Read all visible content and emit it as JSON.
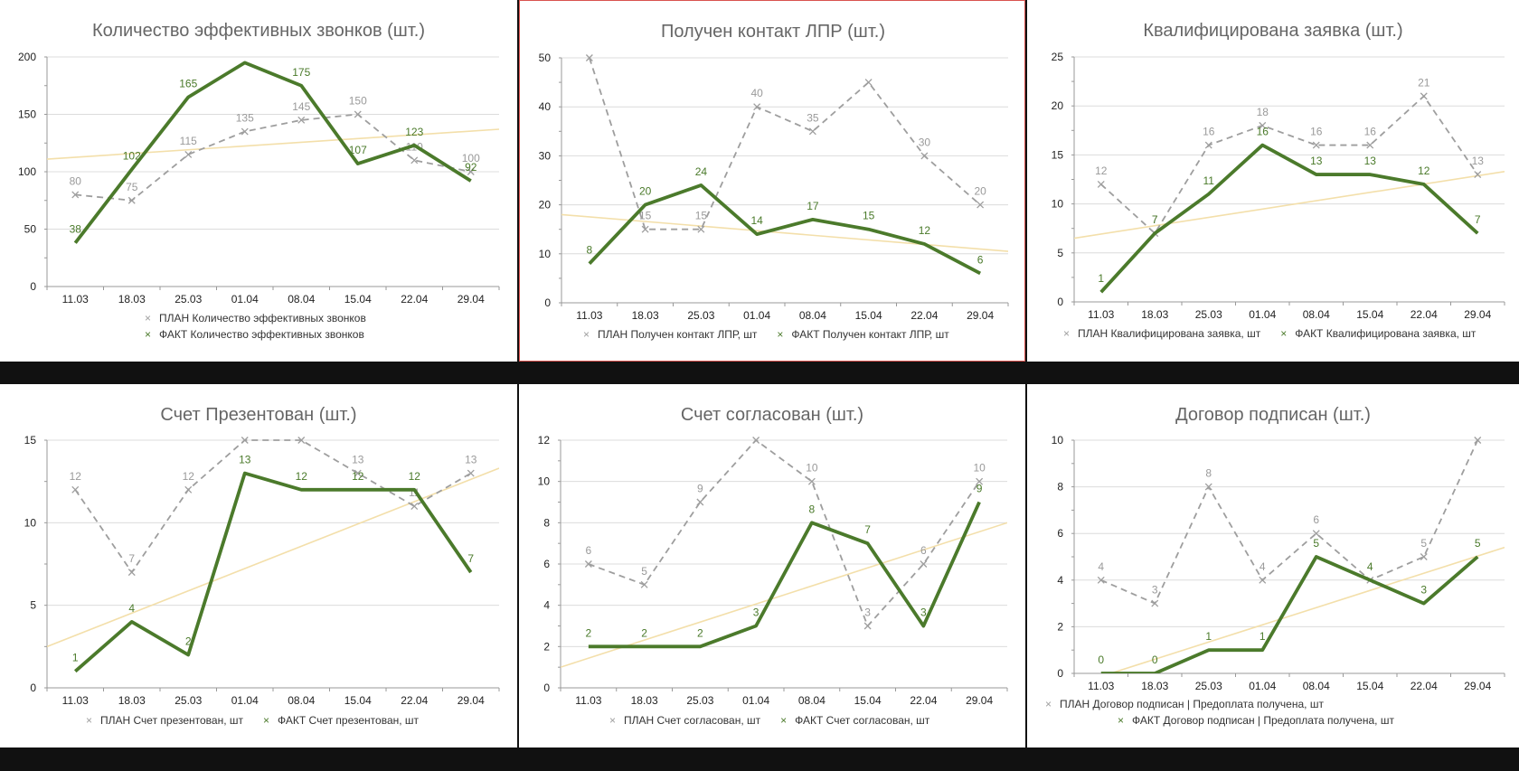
{
  "colors": {
    "plan": "#9e9e9e",
    "fact": "#4b7a2b",
    "trend": "#f3dfaa",
    "grid": "#dcdcdc",
    "axis": "#999999",
    "label_plan": "#9a9a9a",
    "label_fact": "#4a7a2a",
    "selected_border": "#d9534f"
  },
  "legend_marker": "×",
  "chart_data": [
    {
      "type": "line",
      "title": "Количество эффективных звонков (шт.)",
      "categories": [
        "11.03",
        "18.03",
        "25.03",
        "01.04",
        "08.04",
        "15.04",
        "22.04",
        "29.04"
      ],
      "ylim": [
        0,
        200
      ],
      "yticks": [
        0,
        50,
        100,
        150,
        200
      ],
      "minor_step": 25,
      "grid": true,
      "legend_placement": "bottom",
      "legend_layout": "stacked",
      "selected": false,
      "series": [
        {
          "name": "ПЛАН Количество эффективных звонков",
          "role": "plan",
          "values": [
            80,
            75,
            115,
            135,
            145,
            150,
            110,
            100
          ]
        },
        {
          "name": "ФАКТ Количество эффективных звонков",
          "role": "fact",
          "values": [
            38,
            102,
            165,
            195,
            175,
            107,
            123,
            92
          ],
          "labels": [
            "38",
            "102",
            "165",
            "",
            "175",
            "107",
            "123",
            "92"
          ]
        }
      ],
      "trendline": [
        111,
        137
      ]
    },
    {
      "type": "line",
      "title": "Получен контакт ЛПР (шт.)",
      "categories": [
        "11.03",
        "18.03",
        "25.03",
        "01.04",
        "08.04",
        "15.04",
        "22.04",
        "29.04"
      ],
      "ylim": [
        0,
        50
      ],
      "yticks": [
        0,
        10,
        20,
        30,
        40,
        50
      ],
      "minor_step": 5,
      "grid": true,
      "legend_placement": "bottom",
      "legend_layout": "inline",
      "selected": true,
      "series": [
        {
          "name": "ПЛАН Получен контакт ЛПР, шт",
          "role": "plan",
          "values": [
            50,
            15,
            15,
            40,
            35,
            45,
            30,
            20
          ],
          "labels": [
            "",
            "15",
            "15",
            "40",
            "35",
            "",
            "30",
            "20"
          ]
        },
        {
          "name": "ФАКТ Получен контакт ЛПР, шт",
          "role": "fact",
          "values": [
            8,
            20,
            24,
            14,
            17,
            15,
            12,
            6
          ]
        }
      ],
      "trendline": [
        18,
        10.5
      ]
    },
    {
      "type": "line",
      "title": "Квалифицирована заявка (шт.)",
      "categories": [
        "11.03",
        "18.03",
        "25.03",
        "01.04",
        "08.04",
        "15.04",
        "22.04",
        "29.04"
      ],
      "ylim": [
        0,
        25
      ],
      "yticks": [
        0,
        5,
        10,
        15,
        20,
        25
      ],
      "minor_step": 2.5,
      "grid": true,
      "legend_placement": "bottom",
      "legend_layout": "inline",
      "selected": false,
      "series": [
        {
          "name": "ПЛАН Квалифицирована заявка, шт",
          "role": "plan",
          "values": [
            12,
            7,
            16,
            18,
            16,
            16,
            21,
            13
          ]
        },
        {
          "name": "ФАКТ Квалифицирована заявка, шт",
          "role": "fact",
          "values": [
            1,
            7,
            11,
            16,
            13,
            13,
            12,
            7
          ]
        }
      ],
      "trendline": [
        6.5,
        13.3
      ]
    },
    {
      "type": "line",
      "title": "Счет Презентован (шт.)",
      "categories": [
        "11.03",
        "18.03",
        "25.03",
        "01.04",
        "08.04",
        "15.04",
        "22.04",
        "29.04"
      ],
      "ylim": [
        0,
        15
      ],
      "yticks": [
        0,
        5,
        10,
        15
      ],
      "minor_step": 2.5,
      "grid": true,
      "legend_placement": "bottom",
      "legend_layout": "inline",
      "selected": false,
      "series": [
        {
          "name": "ПЛАН Счет презентован, шт",
          "role": "plan",
          "values": [
            12,
            7,
            12,
            15,
            15,
            13,
            11,
            13
          ],
          "labels": [
            "12",
            "7",
            "12",
            "",
            "",
            "13",
            "11",
            "13"
          ]
        },
        {
          "name": "ФАКТ Счет презентован, шт",
          "role": "fact",
          "values": [
            1,
            4,
            2,
            13,
            12,
            12,
            12,
            7
          ]
        }
      ],
      "trendline": [
        2.5,
        13.3
      ]
    },
    {
      "type": "line",
      "title": "Счет согласован (шт.)",
      "categories": [
        "11.03",
        "18.03",
        "25.03",
        "01.04",
        "08.04",
        "15.04",
        "22.04",
        "29.04"
      ],
      "ylim": [
        0,
        12
      ],
      "yticks": [
        0,
        2,
        4,
        6,
        8,
        10,
        12
      ],
      "minor_step": 1,
      "grid": true,
      "legend_placement": "bottom",
      "legend_layout": "inline",
      "selected": false,
      "series": [
        {
          "name": "ПЛАН Счет согласован, шт",
          "role": "plan",
          "values": [
            6,
            5,
            9,
            12,
            10,
            3,
            6,
            10
          ],
          "labels": [
            "6",
            "5",
            "9",
            "",
            "10",
            "3",
            "6",
            "10"
          ]
        },
        {
          "name": "ФАКТ Счет согласован, шт",
          "role": "fact",
          "values": [
            2,
            2,
            2,
            3,
            8,
            7,
            3,
            9
          ]
        }
      ],
      "trendline": [
        1,
        8
      ]
    },
    {
      "type": "line",
      "title": "Договор подписан (шт.)",
      "categories": [
        "11.03",
        "18.03",
        "25.03",
        "01.04",
        "08.04",
        "15.04",
        "22.04",
        "29.04"
      ],
      "ylim": [
        0,
        10
      ],
      "yticks": [
        0,
        2,
        4,
        6,
        8,
        10
      ],
      "minor_step": 1,
      "grid": true,
      "legend_placement": "bottom",
      "legend_layout": "stacked",
      "selected": false,
      "series": [
        {
          "name": "ПЛАН Договор подписан | Предоплата получена, шт",
          "role": "plan",
          "values": [
            4,
            3,
            8,
            4,
            6,
            4,
            5,
            10
          ],
          "labels": [
            "4",
            "3",
            "8",
            "4",
            "6",
            "",
            "5",
            ""
          ]
        },
        {
          "name": "ФАКТ Договор подписан | Предоплата получена, шт",
          "role": "fact",
          "values": [
            0,
            0,
            1,
            1,
            5,
            4,
            3,
            5
          ]
        }
      ],
      "trendline": [
        -0.5,
        5.4
      ]
    }
  ]
}
